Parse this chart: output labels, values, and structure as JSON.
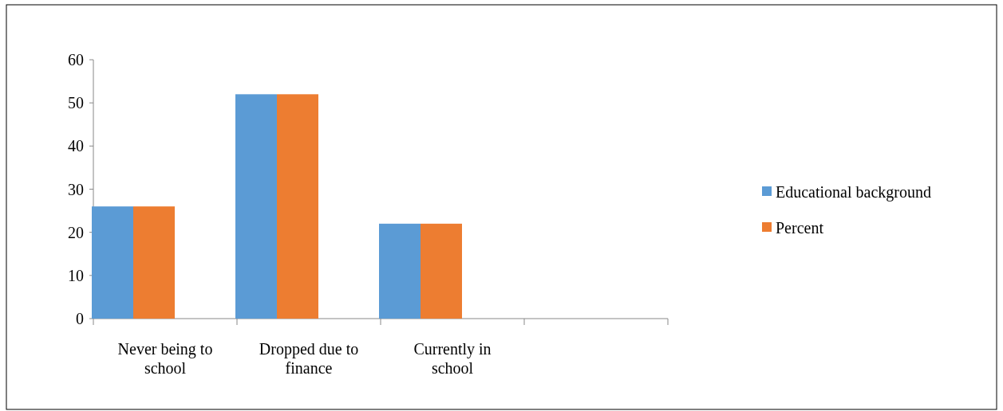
{
  "chart_data": {
    "type": "bar",
    "categories": [
      "Never being to school",
      "Dropped due to finance",
      "Currently in school",
      null
    ],
    "series": [
      {
        "name": "Educational background",
        "color": "#5b9bd5",
        "values": [
          26,
          52,
          22,
          null
        ]
      },
      {
        "name": "Percent",
        "color": "#ed7d31",
        "values": [
          26,
          52,
          22,
          null
        ]
      }
    ],
    "ylim": [
      0,
      60
    ],
    "yticks": [
      0,
      10,
      20,
      30,
      40,
      50,
      60
    ],
    "grid": false,
    "legend": "right"
  }
}
